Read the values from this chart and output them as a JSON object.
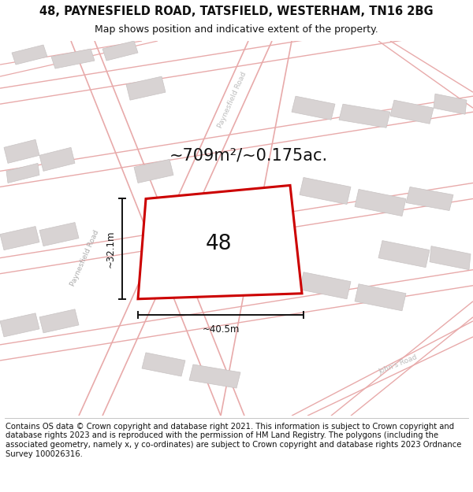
{
  "title": "48, PAYNESFIELD ROAD, TATSFIELD, WESTERHAM, TN16 2BG",
  "subtitle": "Map shows position and indicative extent of the property.",
  "footer": "Contains OS data © Crown copyright and database right 2021. This information is subject to Crown copyright and database rights 2023 and is reproduced with the permission of HM Land Registry. The polygons (including the associated geometry, namely x, y co-ordinates) are subject to Crown copyright and database rights 2023 Ordnance Survey 100026316.",
  "area_label": "~709m²/~0.175ac.",
  "property_label": "48",
  "width_label": "~40.5m",
  "height_label": "~32.1m",
  "road_label_left": "Paynesfield Road",
  "road_label_top": "Paynesfield Road",
  "road_label_bottom_right": "John's Road",
  "map_bg": "#f2eded",
  "block_color": "#d8d3d3",
  "block_edge": "#c8c3c3",
  "road_line_color": "#e8aaaa",
  "property_outline_color": "#cc0000",
  "property_fill": "#ffffff",
  "dim_line_color": "#111111",
  "title_fontsize": 10.5,
  "subtitle_fontsize": 9,
  "footer_fontsize": 7.2,
  "area_fontsize": 15,
  "property_num_fontsize": 19,
  "road_fontsize": 6.5,
  "dim_fontsize": 8.5
}
